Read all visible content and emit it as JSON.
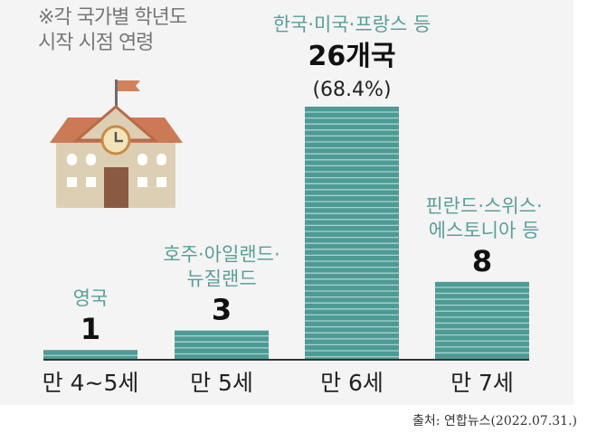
{
  "chart_data": {
    "type": "bar",
    "title": "※각 국가별 학년도 시작 시점 연령",
    "title_lines": [
      "※각 국가별 학년도",
      "시작 시점 연령"
    ],
    "categories": [
      "만 4~5세",
      "만 5세",
      "만 6세",
      "만 7세"
    ],
    "values": [
      1,
      3,
      26,
      8
    ],
    "value_labels": [
      "1",
      "3",
      "26개국",
      "8"
    ],
    "sub_labels": [
      "",
      "",
      "(68.4%)",
      ""
    ],
    "annotations": [
      [
        "영국"
      ],
      [
        "호주·아일랜드·",
        "뉴질랜드"
      ],
      [
        "한국·미국·프랑스 등"
      ],
      [
        "핀란드·스위스·",
        "에스토니아 등"
      ]
    ],
    "xlabel": "",
    "ylabel": "",
    "ylim": [
      0,
      26
    ],
    "grid": false
  },
  "source": "출처: 연합뉴스(2022.07.31.)",
  "colors": {
    "bar": "#4e9a94",
    "stripe": "#a8d4cf",
    "annotation": "#5a9e98",
    "axis": "#333333"
  }
}
